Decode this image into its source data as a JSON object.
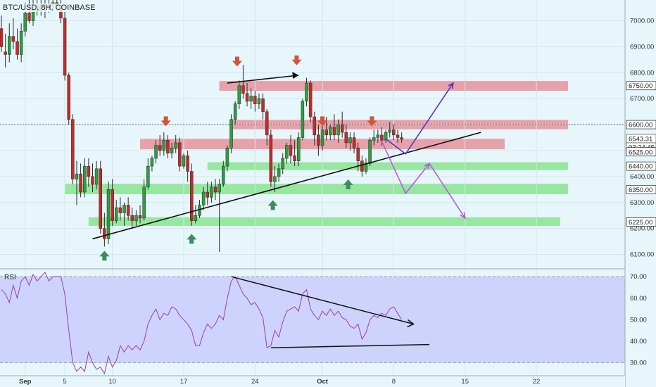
{
  "header": {
    "symbol_line": "BTC/USD, 8H, COINBASE"
  },
  "rsi_label": "RSI",
  "chart_data": [
    {
      "type": "candlestick",
      "title": "BTC/USD, 8H, COINBASE",
      "ylim": [
        6050,
        7080
      ],
      "y_ticks": [
        6100,
        6200,
        6300,
        6400,
        6500,
        6600,
        6700,
        6800,
        6900,
        7000
      ],
      "y_tick_labels": [
        "6100.00",
        "6200.00",
        "6300.00",
        "6400.00",
        "6500.00",
        "6600.00",
        "6700.00",
        "6800.00",
        "6900.00",
        "7000.00"
      ],
      "x_tick_labels": [
        "Sep",
        "5",
        "10",
        "17",
        "24",
        "Oct",
        "8",
        "15",
        "22"
      ],
      "x_tick_bars": [
        6,
        16,
        28,
        46,
        64,
        81,
        99,
        117,
        135
      ],
      "grid": true,
      "price_flags": [
        {
          "label": "6750.00",
          "kind": "resistance"
        },
        {
          "label": "6600.00",
          "kind": "resistance"
        },
        {
          "label": "6543.31",
          "kind": "last"
        },
        {
          "label": "03:24:45",
          "kind": "timer"
        },
        {
          "label": "6525.00",
          "kind": "resistance"
        },
        {
          "label": "6440.00",
          "kind": "support"
        },
        {
          "label": "6350.00",
          "kind": "support"
        },
        {
          "label": "6225.00",
          "kind": "support"
        }
      ],
      "last_price": 6543.31,
      "resistance_zones": [
        {
          "start": 55,
          "end": 143,
          "low": 6730,
          "high": 6768
        },
        {
          "start": 58,
          "end": 143,
          "low": 6582,
          "high": 6618
        },
        {
          "start": 35,
          "end": 127,
          "low": 6505,
          "high": 6545
        }
      ],
      "support_zones": [
        {
          "start": 52,
          "end": 143,
          "low": 6425,
          "high": 6455
        },
        {
          "start": 16,
          "end": 143,
          "low": 6332,
          "high": 6372
        },
        {
          "start": 22,
          "end": 141,
          "low": 6210,
          "high": 6243
        }
      ],
      "trendlines": [
        {
          "x1": 23,
          "y1": 6160,
          "x2": 121,
          "y2": 6570
        },
        {
          "x1": 57,
          "y1": 6760,
          "x2": 75,
          "y2": 6790
        }
      ],
      "arrows_down": [
        {
          "x": 59.5,
          "y": 6840
        },
        {
          "x": 74.5,
          "y": 6845
        },
        {
          "x": 41.5,
          "y": 6610
        },
        {
          "x": 81,
          "y": 6610
        },
        {
          "x": 93.5,
          "y": 6610
        }
      ],
      "arrows_up": [
        {
          "x": 26,
          "y": 6095
        },
        {
          "x": 48,
          "y": 6160
        },
        {
          "x": 68.5,
          "y": 6290
        },
        {
          "x": 87.5,
          "y": 6370
        }
      ],
      "projection_paths": [
        {
          "color": "#5a2fc9",
          "points": [
            [
              97,
              6545
            ],
            [
              102,
              6487
            ],
            [
              114,
              6760
            ]
          ]
        },
        {
          "color": "#b45be0",
          "points": [
            [
              96,
              6535
            ],
            [
              102,
              6335
            ],
            [
              108,
              6450
            ]
          ]
        },
        {
          "color": "#b45be0",
          "points": [
            [
              108,
              6450
            ],
            [
              117,
              6240
            ]
          ]
        }
      ],
      "candles": [
        [
          6970,
          7020,
          6900,
          6880
        ],
        [
          6880,
          6950,
          6870,
          6820
        ],
        [
          6870,
          6990,
          6940,
          6840
        ],
        [
          6940,
          7010,
          6920,
          6890
        ],
        [
          6920,
          6970,
          6870,
          6850
        ],
        [
          6870,
          6990,
          6960,
          6840
        ],
        [
          6960,
          7070,
          7030,
          6940
        ],
        [
          7030,
          7080,
          7000,
          6990
        ],
        [
          7000,
          7080,
          7040,
          6980
        ],
        [
          7040,
          7080,
          7060,
          7020
        ],
        [
          7060,
          7080,
          7040,
          7020
        ],
        [
          7040,
          7080,
          7050,
          7010
        ],
        [
          7050,
          7080,
          7060,
          7030
        ],
        [
          7060,
          7080,
          7070,
          7040
        ],
        [
          7070,
          7080,
          7060,
          7040
        ],
        [
          7060,
          7080,
          7010,
          6990
        ],
        [
          7010,
          7040,
          6790,
          6770
        ],
        [
          6790,
          6800,
          6620,
          6600
        ],
        [
          6620,
          6640,
          6390,
          6370
        ],
        [
          6390,
          6460,
          6410,
          6290
        ],
        [
          6410,
          6450,
          6340,
          6320
        ],
        [
          6340,
          6470,
          6440,
          6320
        ],
        [
          6440,
          6470,
          6400,
          6360
        ],
        [
          6400,
          6450,
          6370,
          6340
        ],
        [
          6370,
          6460,
          6430,
          6350
        ],
        [
          6430,
          6460,
          6200,
          6180
        ],
        [
          6200,
          6260,
          6160,
          6130
        ],
        [
          6160,
          6380,
          6350,
          6140
        ],
        [
          6350,
          6390,
          6230,
          6210
        ],
        [
          6230,
          6310,
          6280,
          6220
        ],
        [
          6280,
          6320,
          6260,
          6230
        ],
        [
          6260,
          6300,
          6290,
          6210
        ],
        [
          6290,
          6320,
          6250,
          6230
        ],
        [
          6250,
          6280,
          6230,
          6200
        ],
        [
          6230,
          6270,
          6250,
          6210
        ],
        [
          6250,
          6290,
          6240,
          6220
        ],
        [
          6240,
          6390,
          6360,
          6230
        ],
        [
          6360,
          6470,
          6440,
          6350
        ],
        [
          6440,
          6480,
          6470,
          6420
        ],
        [
          6470,
          6540,
          6520,
          6450
        ],
        [
          6520,
          6560,
          6500,
          6480
        ],
        [
          6500,
          6570,
          6540,
          6480
        ],
        [
          6540,
          6560,
          6490,
          6470
        ],
        [
          6490,
          6530,
          6510,
          6470
        ],
        [
          6510,
          6560,
          6530,
          6490
        ],
        [
          6530,
          6550,
          6440,
          6420
        ],
        [
          6440,
          6490,
          6480,
          6430
        ],
        [
          6480,
          6500,
          6420,
          6380
        ],
        [
          6420,
          6450,
          6230,
          6210
        ],
        [
          6230,
          6290,
          6250,
          6220
        ],
        [
          6250,
          6310,
          6290,
          6240
        ],
        [
          6290,
          6360,
          6340,
          6270
        ],
        [
          6340,
          6380,
          6320,
          6290
        ],
        [
          6320,
          6380,
          6360,
          6300
        ],
        [
          6360,
          6390,
          6340,
          6310
        ],
        [
          6340,
          6390,
          6370,
          6110
        ],
        [
          6370,
          6460,
          6440,
          6360
        ],
        [
          6440,
          6520,
          6510,
          6420
        ],
        [
          6510,
          6640,
          6620,
          6490
        ],
        [
          6620,
          6690,
          6680,
          6600
        ],
        [
          6680,
          6770,
          6750,
          6660
        ],
        [
          6750,
          6830,
          6720,
          6700
        ],
        [
          6720,
          6760,
          6690,
          6670
        ],
        [
          6690,
          6740,
          6710,
          6660
        ],
        [
          6710,
          6730,
          6680,
          6650
        ],
        [
          6680,
          6720,
          6700,
          6660
        ],
        [
          6700,
          6720,
          6650,
          6620
        ],
        [
          6650,
          6660,
          6560,
          6520
        ],
        [
          6560,
          6580,
          6380,
          6360
        ],
        [
          6380,
          6440,
          6400,
          6340
        ],
        [
          6400,
          6450,
          6430,
          6380
        ],
        [
          6430,
          6490,
          6470,
          6410
        ],
        [
          6470,
          6530,
          6520,
          6450
        ],
        [
          6520,
          6560,
          6480,
          6450
        ],
        [
          6480,
          6540,
          6460,
          6440
        ],
        [
          6460,
          6570,
          6550,
          6440
        ],
        [
          6550,
          6700,
          6690,
          6540
        ],
        [
          6690,
          6780,
          6760,
          6670
        ],
        [
          6760,
          6770,
          6630,
          6610
        ],
        [
          6630,
          6650,
          6560,
          6520
        ],
        [
          6560,
          6600,
          6520,
          6480
        ],
        [
          6520,
          6600,
          6580,
          6500
        ],
        [
          6580,
          6630,
          6560,
          6540
        ],
        [
          6560,
          6600,
          6590,
          6540
        ],
        [
          6590,
          6640,
          6560,
          6540
        ],
        [
          6560,
          6620,
          6600,
          6530
        ],
        [
          6600,
          6650,
          6570,
          6550
        ],
        [
          6570,
          6600,
          6530,
          6510
        ],
        [
          6530,
          6570,
          6550,
          6500
        ],
        [
          6550,
          6570,
          6510,
          6490
        ],
        [
          6510,
          6530,
          6460,
          6420
        ],
        [
          6460,
          6480,
          6420,
          6400
        ],
        [
          6420,
          6470,
          6450,
          6410
        ],
        [
          6450,
          6550,
          6540,
          6440
        ],
        [
          6540,
          6580,
          6550,
          6520
        ],
        [
          6550,
          6580,
          6560,
          6530
        ],
        [
          6560,
          6590,
          6540,
          6520
        ],
        [
          6540,
          6580,
          6570,
          6530
        ],
        [
          6570,
          6610,
          6580,
          6550
        ],
        [
          6580,
          6600,
          6560,
          6540
        ],
        [
          6560,
          6580,
          6550,
          6530
        ],
        [
          6550,
          6570,
          6543.31,
          6530
        ]
      ]
    },
    {
      "type": "line",
      "title": "RSI",
      "ylim": [
        24,
        73
      ],
      "y_ticks": [
        30,
        40,
        50,
        60,
        70
      ],
      "y_tick_labels": [
        "30.00",
        "40.00",
        "50.00",
        "60.00",
        "70.00"
      ],
      "band": [
        30,
        70
      ],
      "trendlines": [
        {
          "x1": 58,
          "y1": 70,
          "x2": 104,
          "y2": 48
        },
        {
          "x1": 68,
          "y1": 37,
          "x2": 108,
          "y2": 38.5
        }
      ],
      "values": [
        64,
        62,
        58,
        66,
        60,
        68,
        70,
        66,
        71,
        68,
        70,
        72,
        68,
        70,
        70,
        70,
        62,
        45,
        30,
        26,
        28,
        26,
        35,
        30,
        27,
        28,
        25,
        33,
        28,
        31,
        38,
        35,
        38,
        36,
        38,
        36,
        40,
        48,
        52,
        55,
        50,
        53,
        52,
        56,
        55,
        52,
        50,
        48,
        45,
        38,
        38,
        44,
        48,
        46,
        48,
        52,
        50,
        60,
        68,
        70,
        66,
        62,
        60,
        57,
        58,
        55,
        51,
        37,
        38,
        45,
        42,
        49,
        54,
        55,
        56,
        54,
        62,
        64,
        55,
        52,
        50,
        54,
        52,
        55,
        52,
        54,
        51,
        50,
        47,
        46,
        48,
        41,
        44,
        50,
        52,
        51,
        53,
        52,
        55,
        56,
        53,
        50
      ]
    }
  ]
}
